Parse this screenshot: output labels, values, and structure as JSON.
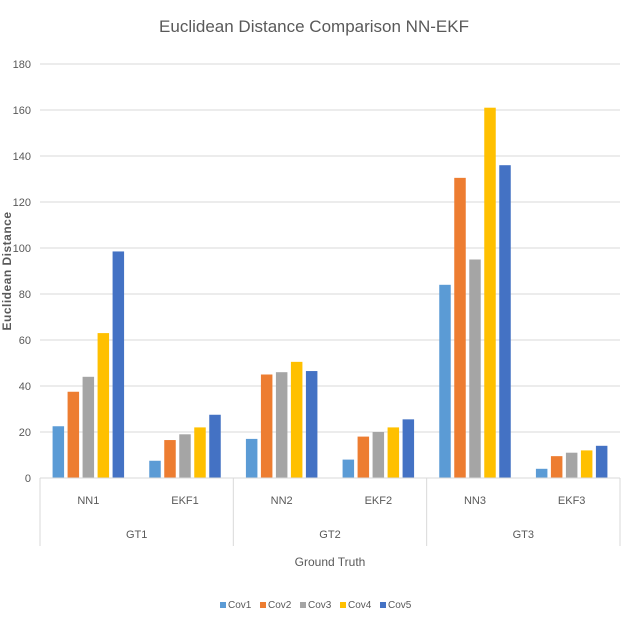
{
  "chart_data": {
    "type": "bar",
    "title": "Euclidean Distance Comparison NN-EKF",
    "xlabel": "Ground Truth",
    "ylabel": "Euclidean Distance",
    "ylim": [
      0,
      180
    ],
    "yticks": [
      0,
      20,
      40,
      60,
      80,
      100,
      120,
      140,
      160,
      180
    ],
    "grid": true,
    "legend_position": "bottom",
    "groups": [
      "GT1",
      "GT2",
      "GT3"
    ],
    "categories": [
      "NN1",
      "EKF1",
      "NN2",
      "EKF2",
      "NN3",
      "EKF3"
    ],
    "series": [
      {
        "name": "Cov1",
        "color": "#5B9BD5",
        "values": [
          22.5,
          7.5,
          17,
          8,
          84,
          4
        ]
      },
      {
        "name": "Cov2",
        "color": "#ED7D31",
        "values": [
          37.5,
          16.5,
          45,
          18,
          130.5,
          9.5
        ]
      },
      {
        "name": "Cov3",
        "color": "#A5A5A5",
        "values": [
          44,
          19,
          46,
          20,
          95,
          11
        ]
      },
      {
        "name": "Cov4",
        "color": "#FFC000",
        "values": [
          63,
          22,
          50.5,
          22,
          161,
          12
        ]
      },
      {
        "name": "Cov5",
        "color": "#4472C4",
        "values": [
          98.5,
          27.5,
          46.5,
          25.5,
          136,
          14
        ]
      }
    ]
  }
}
